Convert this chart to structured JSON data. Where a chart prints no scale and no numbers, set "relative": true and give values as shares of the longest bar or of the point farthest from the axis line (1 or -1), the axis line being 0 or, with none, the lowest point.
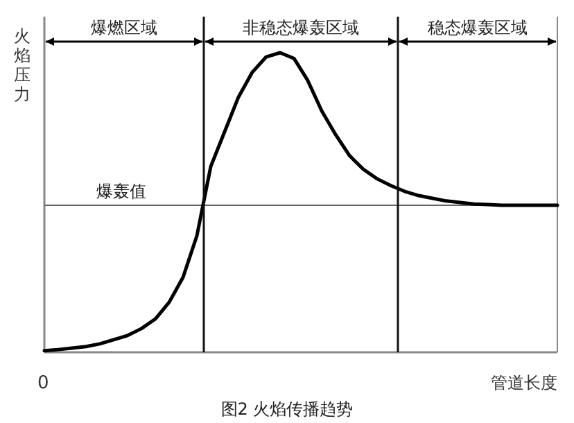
{
  "chart_data": {
    "type": "line",
    "relative": true,
    "title": "图2 火焰传播趋势",
    "xlabel": "管道长度",
    "ylabel": "火焰压力",
    "categories": [
      null,
      null,
      null,
      null,
      null,
      null,
      null,
      null,
      null,
      null,
      null,
      null,
      null,
      null,
      null,
      null,
      null,
      null,
      null,
      null,
      null,
      null,
      null,
      null,
      null,
      null,
      null,
      null,
      null,
      null,
      null,
      null,
      null,
      null,
      null,
      null,
      null,
      null
    ],
    "annotations": [
      "0",
      "爆燃区域",
      "非稳态爆轰区域",
      "稳态爆轰区域"
    ],
    "series": [
      {
        "color": "#000000",
        "values": [
          0.005,
          0.009,
          0.014,
          0.019,
          0.028,
          0.042,
          0.056,
          0.079,
          0.111,
          0.167,
          0.25,
          0.389,
          0.62,
          0.736,
          0.852,
          0.935,
          0.986,
          1,
          0.981,
          0.907,
          0.806,
          0.727,
          0.657,
          0.611,
          0.579,
          0.556,
          0.537,
          0.523,
          0.514,
          0.505,
          0.5,
          0.495,
          0.493,
          0.491,
          0.491,
          0.491,
          0.491,
          0.491
        ]
      }
    ],
    "ref_lines": [
      {
        "axis": "y",
        "value": 0.491,
        "label": "爆轰值"
      }
    ],
    "line_style": "solid"
  }
}
